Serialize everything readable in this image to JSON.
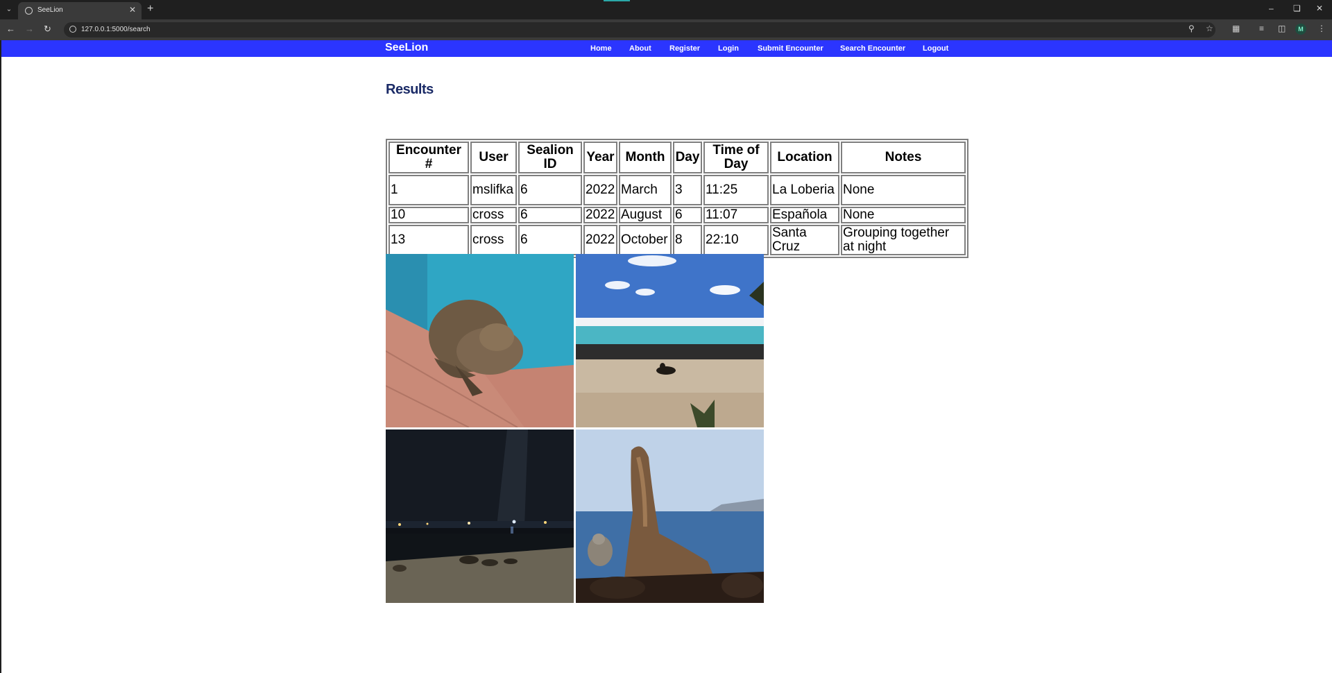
{
  "browser": {
    "tab_title": "SeeLion",
    "url": "127.0.0.1:5000/search",
    "profile_initial": "M"
  },
  "navbar": {
    "brand": "SeeLion",
    "links": [
      "Home",
      "About",
      "Register",
      "Login",
      "Submit Encounter",
      "Search Encounter",
      "Logout"
    ]
  },
  "page": {
    "title": "Results"
  },
  "table": {
    "headers": [
      [
        "Encounter",
        "#"
      ],
      [
        "User"
      ],
      [
        "Sealion",
        "ID"
      ],
      [
        "Year"
      ],
      [
        "Month"
      ],
      [
        "Day"
      ],
      [
        "Time of",
        "Day"
      ],
      [
        "Location"
      ],
      [
        "Notes"
      ]
    ],
    "rows": [
      [
        "1",
        "mslifka",
        "6",
        "2022",
        "March",
        "3",
        "11:25",
        "La Loberia",
        "None"
      ],
      [
        "10",
        "cross",
        "6",
        "2022",
        "August",
        "6",
        "11:07",
        "Española",
        "None"
      ],
      [
        "13",
        "cross",
        "6",
        "2022",
        "October",
        "8",
        "22:10",
        "Santa Cruz",
        "Grouping together at night"
      ]
    ]
  },
  "photos": [
    {
      "icon": "sea-lion-sleeping-against-blue-wall"
    },
    {
      "icon": "sea-lion-on-beach"
    },
    {
      "icon": "sea-lions-on-beach-at-night"
    },
    {
      "icon": "sea-lion-on-rocks-by-sea"
    }
  ]
}
